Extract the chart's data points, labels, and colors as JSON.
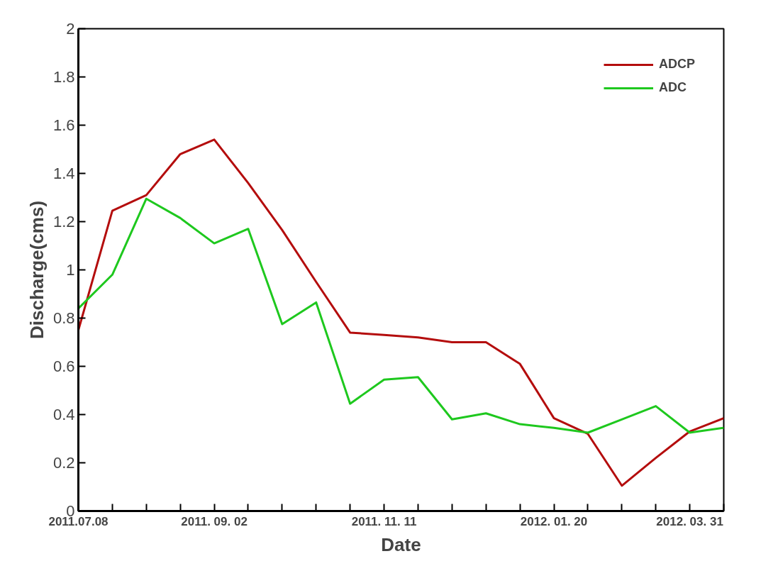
{
  "chart_data": {
    "type": "line",
    "xlabel": "Date",
    "ylabel": "Discharge(cms)",
    "categories": [
      "2011.07.08",
      null,
      null,
      null,
      "2011. 09. 02",
      null,
      null,
      null,
      null,
      "2011. 11. 11",
      null,
      null,
      null,
      null,
      "2012. 01. 20",
      null,
      null,
      null,
      "2012. 03. 31",
      null
    ],
    "series": [
      {
        "name": "ADCP",
        "color": "#b40d0d",
        "values": [
          0.75,
          1.245,
          1.31,
          1.48,
          1.54,
          1.36,
          1.165,
          0.95,
          0.74,
          0.73,
          0.72,
          0.7,
          0.7,
          0.61,
          0.385,
          0.32,
          0.105,
          0.22,
          0.33,
          0.385
        ]
      },
      {
        "name": "ADC",
        "color": "#1ec81e",
        "values": [
          0.84,
          0.98,
          1.295,
          1.215,
          1.11,
          1.17,
          0.775,
          0.865,
          0.445,
          0.545,
          0.555,
          0.38,
          0.405,
          0.36,
          0.345,
          0.325,
          0.38,
          0.435,
          0.325,
          0.345
        ]
      }
    ],
    "ylim": [
      0,
      2
    ],
    "yticks": [
      0,
      0.2,
      0.4,
      0.6,
      0.8,
      1,
      1.2,
      1.4,
      1.6,
      1.8,
      2
    ],
    "grid": false,
    "legend": "top right"
  }
}
